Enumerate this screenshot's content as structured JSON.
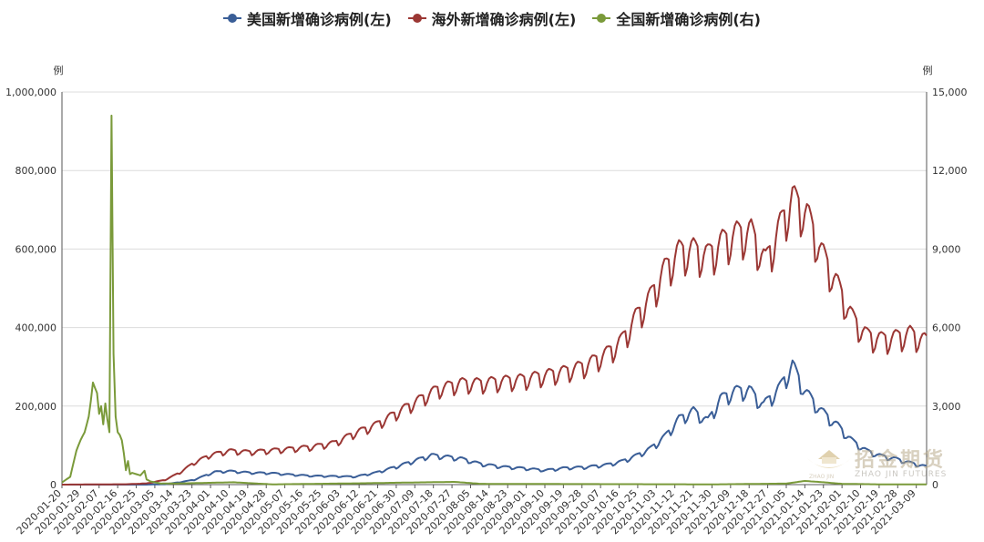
{
  "legend": {
    "us": "美国新增确诊病例(左)",
    "overseas": "海外新增确诊病例(左)",
    "china": "全国新增确诊病例(右)"
  },
  "colors": {
    "us": "#3a5e97",
    "overseas": "#9b3734",
    "china": "#7a9a3a",
    "grid": "#dcdcdc",
    "axis": "#555555"
  },
  "watermark": {
    "cn": "招金期货",
    "en": "ZHAO JIN FUTURES",
    "sub": "ZHAO JIN"
  },
  "chart_data": {
    "type": "line",
    "title": "",
    "x_type": "date",
    "x_range": [
      "2020-01-20",
      "2021-03-14"
    ],
    "x_tick_labels": [
      "2020-01-20",
      "2020-01-29",
      "2020-02-07",
      "2020-02-16",
      "2020-02-25",
      "2020-03-05",
      "2020-03-14",
      "2020-03-23",
      "2020-04-01",
      "2020-04-10",
      "2020-04-19",
      "2020-04-28",
      "2020-05-07",
      "2020-05-16",
      "2020-05-25",
      "2020-06-03",
      "2020-06-12",
      "2020-06-21",
      "2020-06-30",
      "2020-07-09",
      "2020-07-18",
      "2020-07-27",
      "2020-08-05",
      "2020-08-14",
      "2020-08-23",
      "2020-09-01",
      "2020-09-10",
      "2020-09-19",
      "2020-09-28",
      "2020-10-07",
      "2020-10-16",
      "2020-10-25",
      "2020-11-03",
      "2020-11-12",
      "2020-11-21",
      "2020-11-30",
      "2020-12-09",
      "2020-12-18",
      "2020-12-27",
      "2021-01-05",
      "2021-01-14",
      "2021-01-23",
      "2021-02-01",
      "2021-02-10",
      "2021-02-19",
      "2021-02-28",
      "2021-03-09"
    ],
    "y_left": {
      "unit": "例",
      "min": 0,
      "max": 1000000,
      "ticks": [
        "0",
        "200,000",
        "400,000",
        "600,000",
        "800,000",
        "1,000,000"
      ]
    },
    "y_right": {
      "unit": "例",
      "min": 0,
      "max": 15000,
      "ticks": [
        "0",
        "3,000",
        "6,000",
        "9,000",
        "12,000",
        "15,000"
      ]
    },
    "grid": true,
    "legend_position": "top-center",
    "series": [
      {
        "key": "us",
        "name": "美国新增确诊病例(左)",
        "axis": "left",
        "points": [
          [
            "2020-01-20",
            0
          ],
          [
            "2020-02-29",
            0
          ],
          [
            "2020-03-10",
            1000
          ],
          [
            "2020-03-17",
            6000
          ],
          [
            "2020-03-24",
            12000
          ],
          [
            "2020-03-28",
            20000
          ],
          [
            "2020-04-03",
            32000
          ],
          [
            "2020-04-10",
            34000
          ],
          [
            "2020-04-20",
            30000
          ],
          [
            "2020-04-30",
            29000
          ],
          [
            "2020-05-10",
            25000
          ],
          [
            "2020-05-20",
            22000
          ],
          [
            "2020-05-31",
            21000
          ],
          [
            "2020-06-10",
            20000
          ],
          [
            "2020-06-20",
            30000
          ],
          [
            "2020-06-30",
            45000
          ],
          [
            "2020-07-10",
            62000
          ],
          [
            "2020-07-17",
            74000
          ],
          [
            "2020-07-24",
            70000
          ],
          [
            "2020-07-31",
            66000
          ],
          [
            "2020-08-10",
            52000
          ],
          [
            "2020-08-20",
            45000
          ],
          [
            "2020-08-31",
            41000
          ],
          [
            "2020-09-10",
            36000
          ],
          [
            "2020-09-20",
            42000
          ],
          [
            "2020-09-30",
            44000
          ],
          [
            "2020-10-10",
            50000
          ],
          [
            "2020-10-17",
            58000
          ],
          [
            "2020-10-24",
            72000
          ],
          [
            "2020-10-31",
            90000
          ],
          [
            "2020-11-07",
            120000
          ],
          [
            "2020-11-14",
            165000
          ],
          [
            "2020-11-21",
            185000
          ],
          [
            "2020-11-28",
            160000
          ],
          [
            "2020-12-04",
            215000
          ],
          [
            "2020-12-11",
            235000
          ],
          [
            "2020-12-18",
            238000
          ],
          [
            "2020-12-25",
            200000
          ],
          [
            "2021-01-02",
            245000
          ],
          [
            "2021-01-08",
            300000
          ],
          [
            "2021-01-14",
            235000
          ],
          [
            "2021-01-22",
            185000
          ],
          [
            "2021-01-30",
            148000
          ],
          [
            "2021-02-06",
            110000
          ],
          [
            "2021-02-13",
            85000
          ],
          [
            "2021-02-20",
            72000
          ],
          [
            "2021-02-27",
            65000
          ],
          [
            "2021-03-06",
            55000
          ],
          [
            "2021-03-14",
            45000
          ]
        ],
        "weekly_amplitude": 0.18
      },
      {
        "key": "overseas",
        "name": "海外新增确诊病例(左)",
        "axis": "left",
        "points": [
          [
            "2020-01-20",
            0
          ],
          [
            "2020-02-20",
            1000
          ],
          [
            "2020-03-01",
            3000
          ],
          [
            "2020-03-10",
            12000
          ],
          [
            "2020-03-17",
            30000
          ],
          [
            "2020-03-24",
            55000
          ],
          [
            "2020-04-01",
            75000
          ],
          [
            "2020-04-10",
            85000
          ],
          [
            "2020-04-20",
            82000
          ],
          [
            "2020-04-30",
            86000
          ],
          [
            "2020-05-10",
            90000
          ],
          [
            "2020-05-20",
            95000
          ],
          [
            "2020-05-31",
            105000
          ],
          [
            "2020-06-10",
            130000
          ],
          [
            "2020-06-20",
            150000
          ],
          [
            "2020-06-30",
            180000
          ],
          [
            "2020-07-10",
            210000
          ],
          [
            "2020-07-20",
            240000
          ],
          [
            "2020-07-31",
            255000
          ],
          [
            "2020-08-10",
            255000
          ],
          [
            "2020-08-20",
            260000
          ],
          [
            "2020-08-31",
            265000
          ],
          [
            "2020-09-10",
            275000
          ],
          [
            "2020-09-20",
            285000
          ],
          [
            "2020-09-30",
            300000
          ],
          [
            "2020-10-10",
            330000
          ],
          [
            "2020-10-17",
            360000
          ],
          [
            "2020-10-24",
            420000
          ],
          [
            "2020-10-31",
            470000
          ],
          [
            "2020-11-07",
            540000
          ],
          [
            "2020-11-14",
            585000
          ],
          [
            "2020-11-21",
            590000
          ],
          [
            "2020-11-28",
            575000
          ],
          [
            "2020-12-05",
            610000
          ],
          [
            "2020-12-12",
            630000
          ],
          [
            "2020-12-19",
            635000
          ],
          [
            "2020-12-26",
            560000
          ],
          [
            "2021-01-02",
            650000
          ],
          [
            "2021-01-08",
            720000
          ],
          [
            "2021-01-15",
            680000
          ],
          [
            "2021-01-22",
            585000
          ],
          [
            "2021-01-30",
            500000
          ],
          [
            "2021-02-06",
            420000
          ],
          [
            "2021-02-13",
            375000
          ],
          [
            "2021-02-20",
            365000
          ],
          [
            "2021-02-27",
            370000
          ],
          [
            "2021-03-06",
            380000
          ],
          [
            "2021-03-14",
            360000
          ]
        ],
        "weekly_amplitude": 0.17
      },
      {
        "key": "china",
        "name": "全国新增确诊病例(右)",
        "axis": "right",
        "points": [
          [
            "2020-01-20",
            80
          ],
          [
            "2020-01-24",
            300
          ],
          [
            "2020-01-27",
            1300
          ],
          [
            "2020-01-29",
            1700
          ],
          [
            "2020-01-31",
            2000
          ],
          [
            "2020-02-02",
            2600
          ],
          [
            "2020-02-03",
            3200
          ],
          [
            "2020-02-04",
            3900
          ],
          [
            "2020-02-06",
            3500
          ],
          [
            "2020-02-07",
            2700
          ],
          [
            "2020-02-08",
            3000
          ],
          [
            "2020-02-09",
            2300
          ],
          [
            "2020-02-10",
            3100
          ],
          [
            "2020-02-11",
            2500
          ],
          [
            "2020-02-12",
            2000
          ],
          [
            "2020-02-13",
            14100
          ],
          [
            "2020-02-14",
            5000
          ],
          [
            "2020-02-15",
            2600
          ],
          [
            "2020-02-16",
            2000
          ],
          [
            "2020-02-17",
            1900
          ],
          [
            "2020-02-18",
            1700
          ],
          [
            "2020-02-19",
            1200
          ],
          [
            "2020-02-20",
            550
          ],
          [
            "2020-02-21",
            900
          ],
          [
            "2020-02-22",
            400
          ],
          [
            "2020-02-23",
            450
          ],
          [
            "2020-02-25",
            400
          ],
          [
            "2020-02-27",
            350
          ],
          [
            "2020-02-29",
            530
          ],
          [
            "2020-03-01",
            200
          ],
          [
            "2020-03-03",
            120
          ],
          [
            "2020-03-08",
            40
          ],
          [
            "2020-03-20",
            50
          ],
          [
            "2020-04-12",
            90
          ],
          [
            "2020-05-01",
            10
          ],
          [
            "2020-06-12",
            50
          ],
          [
            "2020-07-28",
            105
          ],
          [
            "2020-08-10",
            30
          ],
          [
            "2020-10-01",
            20
          ],
          [
            "2020-12-01",
            10
          ],
          [
            "2021-01-05",
            40
          ],
          [
            "2021-01-14",
            140
          ],
          [
            "2021-01-23",
            90
          ],
          [
            "2021-02-01",
            30
          ],
          [
            "2021-02-20",
            10
          ],
          [
            "2021-03-14",
            10
          ]
        ]
      }
    ]
  }
}
